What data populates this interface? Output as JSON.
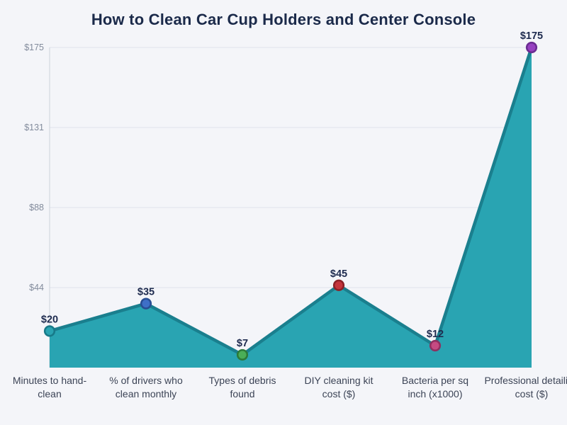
{
  "page": {
    "background_color": "#f4f5f9"
  },
  "chart_data": {
    "type": "area",
    "title": "How to Clean Car Cup Holders and Center Console",
    "categories": [
      "Minutes to hand-clean",
      "% of drivers who clean monthly",
      "Types of debris found",
      "DIY cleaning kit cost ($)",
      "Bacteria per sq inch (x1000)",
      "Professional detailing cost ($)"
    ],
    "category_lines": [
      [
        "Minutes to hand-",
        "clean"
      ],
      [
        "% of drivers who",
        "clean monthly"
      ],
      [
        "Types of debris",
        "found"
      ],
      [
        "DIY cleaning kit",
        "cost ($)"
      ],
      [
        "Bacteria per sq",
        "inch (x1000)"
      ],
      [
        "Professional detailing",
        "cost ($)"
      ]
    ],
    "values": [
      20,
      35,
      7,
      45,
      12,
      175
    ],
    "point_labels": [
      "$20",
      "$35",
      "$7",
      "$45",
      "$12",
      "$175"
    ],
    "ylim": [
      0,
      175
    ],
    "yticks": [
      {
        "value": 43.75,
        "label": "$44"
      },
      {
        "value": 87.5,
        "label": "$88"
      },
      {
        "value": 131.25,
        "label": "$131"
      },
      {
        "value": 175,
        "label": "$175"
      }
    ],
    "grid": true,
    "legend": false,
    "xlabel": "",
    "ylabel": "",
    "styles": {
      "area_fill": "#29a4b2",
      "line_color": "#1a7f8e",
      "line_width": 4.5,
      "grid_color": "#dfe3ea",
      "axis_color": "#ccd2dc",
      "title_color": "#1b2a4a",
      "tick_label_color": "#828b9c",
      "x_label_color": "#3c4456",
      "data_label_color": "#1e2b4f",
      "point_fills": [
        "#2aa4b2",
        "#3e6fc7",
        "#4aae57",
        "#c4343c",
        "#c64a82",
        "#9741c1"
      ],
      "point_strokes": [
        "#187a89",
        "#284e93",
        "#2c7a38",
        "#8c2127",
        "#8e3060",
        "#6b2d92"
      ]
    }
  }
}
